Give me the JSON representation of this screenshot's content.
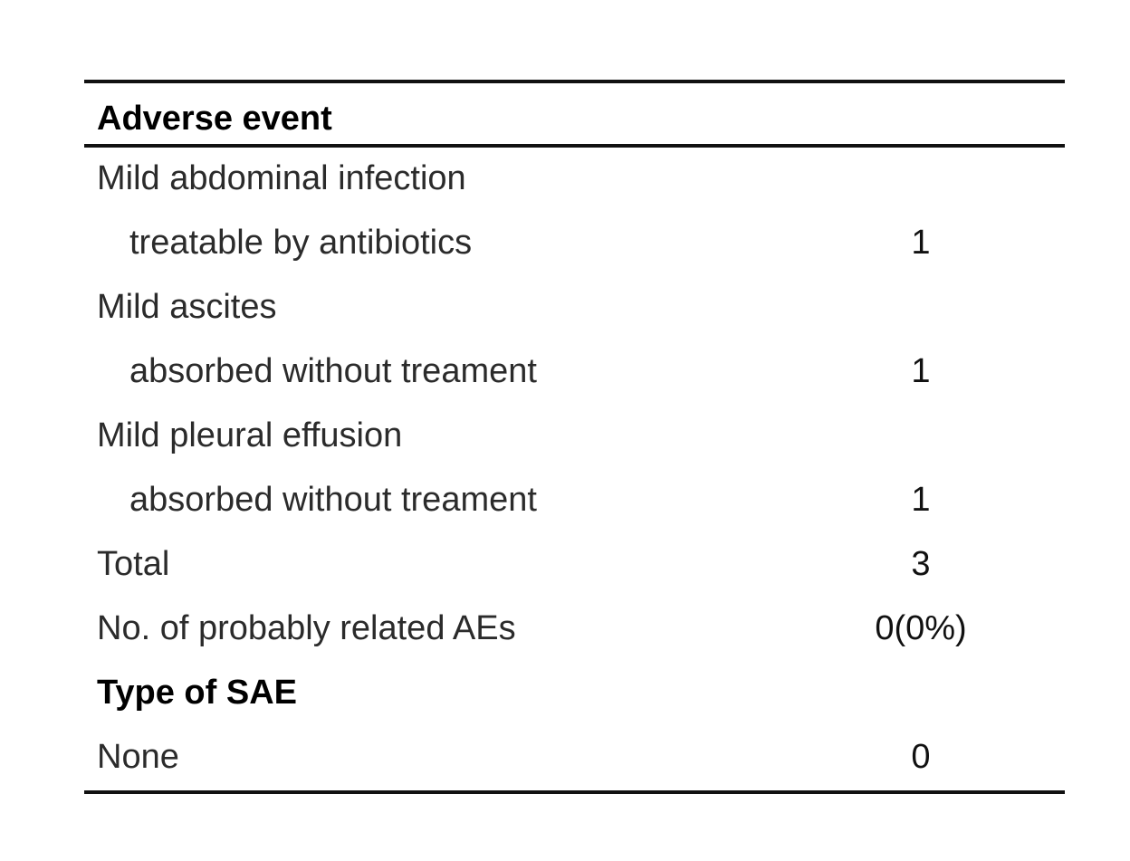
{
  "table": {
    "header": "Adverse event",
    "rows": [
      {
        "label": "Mild abdominal infection",
        "value": "",
        "style": "normal"
      },
      {
        "label": "treatable by antibiotics",
        "value": "1",
        "style": "indent"
      },
      {
        "label": "Mild ascites",
        "value": "",
        "style": "normal"
      },
      {
        "label": "absorbed without treament",
        "value": "1",
        "style": "indent"
      },
      {
        "label": "Mild pleural effusion",
        "value": "",
        "style": "normal"
      },
      {
        "label": "absorbed without treament",
        "value": "1",
        "style": "indent"
      },
      {
        "label": "Total",
        "value": "3",
        "style": "normal"
      },
      {
        "label": "No. of probably related AEs",
        "value": "0(0%)",
        "style": "normal"
      },
      {
        "label": "Type of SAE",
        "value": "",
        "style": "bold"
      },
      {
        "label": "None",
        "value": "0",
        "style": "normal"
      }
    ]
  }
}
